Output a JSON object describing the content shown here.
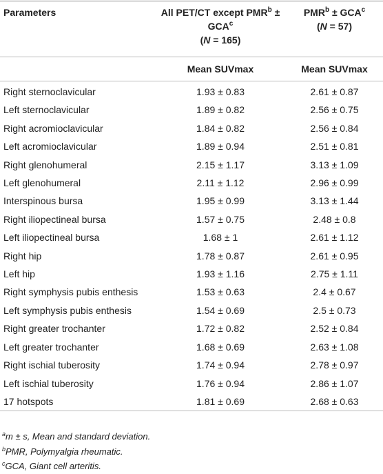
{
  "header": {
    "col1": "Parameters",
    "col2": {
      "text1": "All PET/CT except PMR",
      "sup1": "b",
      "text2": "±",
      "text3": "GCA",
      "sup2": "c",
      "n_open": "(",
      "n_var": "N",
      "n_rest": " = 165)"
    },
    "col3": {
      "text1": "PMR",
      "sup1": "b",
      "text2": " ± GCA",
      "sup2": "c",
      "n_open": "(",
      "n_var": "N",
      "n_rest": " = 57)"
    },
    "sub": [
      "Mean SUVmax",
      "Mean SUVmax"
    ]
  },
  "table": {
    "rows": [
      [
        "Right sternoclavicular",
        "1.93 ± 0.83",
        "2.61 ± 0.87"
      ],
      [
        "Left sternoclavicular",
        "1.89 ± 0.82",
        "2.56 ± 0.75"
      ],
      [
        "Right acromioclavicular",
        "1.84 ± 0.82",
        "2.56 ± 0.84"
      ],
      [
        "Left acromioclavicular",
        "1.89 ± 0.94",
        "2.51 ± 0.81"
      ],
      [
        "Right glenohumeral",
        "2.15 ± 1.17",
        "3.13 ± 1.09"
      ],
      [
        "Left glenohumeral",
        "2.11 ± 1.12",
        "2.96 ± 0.99"
      ],
      [
        "Interspinous bursa",
        "1.95 ± 0.99",
        "3.13 ± 1.44"
      ],
      [
        "Right iliopectineal bursa",
        "1.57 ± 0.75",
        "2.48 ± 0.8"
      ],
      [
        "Left iliopectineal bursa",
        "1.68 ± 1",
        "2.61 ± 1.12"
      ],
      [
        "Right hip",
        "1.78 ± 0.87",
        "2.61 ± 0.95"
      ],
      [
        "Left hip",
        "1.93 ± 1.16",
        "2.75 ± 1.11"
      ],
      [
        "Right symphysis pubis enthesis",
        "1.53 ± 0.63",
        "2.4 ± 0.67"
      ],
      [
        "Left symphysis pubis enthesis",
        "1.54 ± 0.69",
        "2.5 ± 0.73"
      ],
      [
        "Right greater trochanter",
        "1.72 ± 0.82",
        "2.52 ± 0.84"
      ],
      [
        "Left greater trochanter",
        "1.68 ± 0.69",
        "2.63 ± 1.08"
      ],
      [
        "Right ischial tuberosity",
        "1.74 ± 0.94",
        "2.78 ± 0.97"
      ],
      [
        "Left ischial tuberosity",
        "1.76 ± 0.94",
        "2.86 ± 1.07"
      ],
      [
        "17 hotspots",
        "1.81 ± 0.69",
        "2.68 ± 0.63"
      ]
    ]
  },
  "footnotes": [
    {
      "mark": "a",
      "text": "m ± s, Mean and standard deviation."
    },
    {
      "mark": "b",
      "text": "PMR, Polymyalgia rheumatic."
    },
    {
      "mark": "c",
      "text": "GCA, Giant cell arteritis."
    }
  ]
}
